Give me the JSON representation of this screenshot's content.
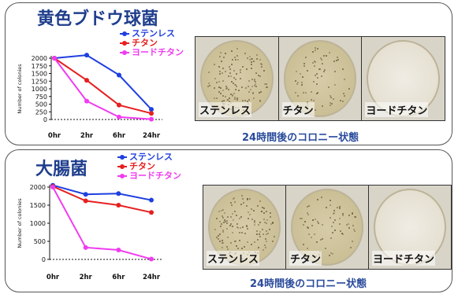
{
  "colors": {
    "series_blue": "#1f3fe0",
    "series_red": "#e62020",
    "series_magenta": "#f03cf0",
    "title": "#1f3e8c",
    "caption": "#2a4b9c"
  },
  "plate_caption": "24時間後のコロニー状態",
  "chart_data": [
    {
      "type": "line",
      "title": "黄色ブドウ球菌",
      "xlabel": "",
      "ylabel": "Number of colonies",
      "categories": [
        "0hr",
        "2hr",
        "6hr",
        "24hr"
      ],
      "yticks": [
        "0",
        "250",
        "500",
        "750",
        "1000",
        "1250",
        "1500",
        "1750",
        "2000"
      ],
      "ylim": [
        0,
        2000
      ],
      "legend_position": "top-right",
      "series": [
        {
          "name": "ステンレス",
          "color": "#1f3fe0",
          "values": [
            2000,
            2100,
            1450,
            330
          ]
        },
        {
          "name": "チタン",
          "color": "#e62020",
          "values": [
            2000,
            1280,
            470,
            200
          ]
        },
        {
          "name": "ヨードチタン",
          "color": "#f03cf0",
          "values": [
            2000,
            600,
            80,
            10
          ]
        }
      ],
      "plates": [
        "ステンレス",
        "チタン",
        "ヨードチタン"
      ]
    },
    {
      "type": "line",
      "title": "大腸菌",
      "xlabel": "",
      "ylabel": "Number of colonies",
      "categories": [
        "0hr",
        "2hr",
        "6hr",
        "24hr"
      ],
      "yticks": [
        "0",
        "500",
        "1000",
        "1500",
        "2000"
      ],
      "ylim": [
        0,
        2000
      ],
      "legend_position": "top-right",
      "series": [
        {
          "name": "ステンレス",
          "color": "#1f3fe0",
          "values": [
            2050,
            1800,
            1820,
            1640
          ]
        },
        {
          "name": "チタン",
          "color": "#e62020",
          "values": [
            2020,
            1620,
            1500,
            1300
          ]
        },
        {
          "name": "ヨードチタン",
          "color": "#f03cf0",
          "values": [
            2000,
            330,
            260,
            10
          ]
        }
      ],
      "plates": [
        "ステンレス",
        "チタン",
        "ヨードチタン"
      ]
    }
  ]
}
